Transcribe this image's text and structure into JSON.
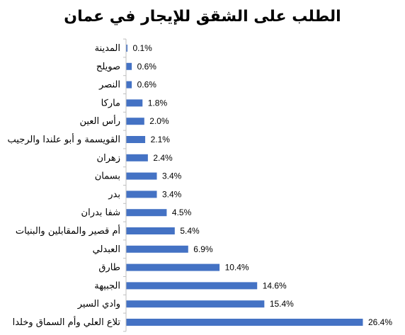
{
  "chart_data": {
    "type": "bar",
    "orientation": "horizontal",
    "title": "الطلب على الشقق للإيجار في عمان",
    "xlabel": "",
    "ylabel": "",
    "categories": [
      "المدينة",
      "صويلح",
      "النصر",
      "ماركا",
      "رأس العين",
      "القويسمة و أبو علندا والرجيب",
      "زهران",
      "بسمان",
      "بدر",
      "شفا بدران",
      "أم قصير والمقابلين والبنيات",
      "العبدلي",
      "طارق",
      "الجبيهة",
      "وادي السير",
      "تلاع العلي وأم السماق وخلدا"
    ],
    "values": [
      0.1,
      0.6,
      0.6,
      1.8,
      2.0,
      2.1,
      2.4,
      3.4,
      3.4,
      4.5,
      5.4,
      6.9,
      10.4,
      14.6,
      15.4,
      26.4
    ],
    "value_labels": [
      "0.1%",
      "0.6%",
      "0.6%",
      "1.8%",
      "2.0%",
      "2.1%",
      "2.4%",
      "3.4%",
      "3.4%",
      "4.5%",
      "5.4%",
      "6.9%",
      "10.4%",
      "14.6%",
      "15.4%",
      "26.4%"
    ],
    "xlim": [
      0,
      26.4
    ],
    "grid": false,
    "legend": "none",
    "bar_color": "#4472C4",
    "axis_color": "#BFBFBF"
  }
}
